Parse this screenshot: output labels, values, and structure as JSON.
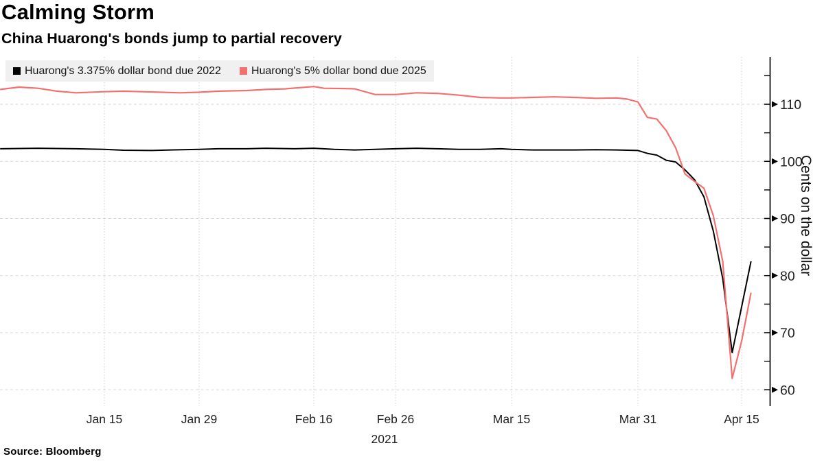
{
  "header": {
    "title": "Calming Storm",
    "subtitle": "China Huarong's bonds jump to partial recovery"
  },
  "legend": {
    "items": [
      {
        "label": "Huarong's 3.375% dollar bond due 2022",
        "color": "#000000"
      },
      {
        "label": "Huarong's 5% dollar bond due 2025",
        "color": "#f4706e"
      }
    ]
  },
  "source": "Source: Bloomberg",
  "chart_data": {
    "type": "line",
    "title": "Calming Storm",
    "subtitle": "China Huarong's bonds jump to partial recovery",
    "ylabel": "Cents on the dollar",
    "year_label": "2021",
    "ylim": [
      58,
      118.5
    ],
    "y_ticks": [
      110,
      100,
      90,
      80,
      70,
      60
    ],
    "y_minor_ticks": [
      115,
      105,
      95,
      85,
      75,
      65
    ],
    "x_ticks": [
      {
        "label": "Jan 15",
        "date": "2021-01-15"
      },
      {
        "label": "Jan 29",
        "date": "2021-01-29"
      },
      {
        "label": "Feb 16",
        "date": "2021-02-16"
      },
      {
        "label": "Feb 26",
        "date": "2021-02-26"
      },
      {
        "label": "Mar 15",
        "date": "2021-03-15"
      },
      {
        "label": "Mar 31",
        "date": "2021-03-31"
      },
      {
        "label": "Apr 15",
        "date": "2021-04-15"
      }
    ],
    "grid": "dashed",
    "legend_position": "top-left",
    "axis_side": "right",
    "series": [
      {
        "name": "Huarong's 3.375% dollar bond due 2022",
        "color": "#000000",
        "points": [
          [
            "2020-12-31",
            102.2
          ],
          [
            "2021-01-04",
            102.25
          ],
          [
            "2021-01-06",
            102.3
          ],
          [
            "2021-01-08",
            102.25
          ],
          [
            "2021-01-12",
            102.2
          ],
          [
            "2021-01-15",
            102.1
          ],
          [
            "2021-01-19",
            101.95
          ],
          [
            "2021-01-22",
            101.9
          ],
          [
            "2021-01-26",
            102.0
          ],
          [
            "2021-01-29",
            102.1
          ],
          [
            "2021-02-02",
            102.2
          ],
          [
            "2021-02-05",
            102.2
          ],
          [
            "2021-02-09",
            102.3
          ],
          [
            "2021-02-12",
            102.2
          ],
          [
            "2021-02-16",
            102.3
          ],
          [
            "2021-02-18",
            102.1
          ],
          [
            "2021-02-22",
            102.0
          ],
          [
            "2021-02-24",
            102.1
          ],
          [
            "2021-02-26",
            102.2
          ],
          [
            "2021-03-02",
            102.3
          ],
          [
            "2021-03-04",
            102.2
          ],
          [
            "2021-03-08",
            102.1
          ],
          [
            "2021-03-10",
            102.1
          ],
          [
            "2021-03-12",
            102.2
          ],
          [
            "2021-03-15",
            102.1
          ],
          [
            "2021-03-17",
            102.0
          ],
          [
            "2021-03-19",
            102.0
          ],
          [
            "2021-03-23",
            102.0
          ],
          [
            "2021-03-25",
            102.05
          ],
          [
            "2021-03-29",
            102.0
          ],
          [
            "2021-03-31",
            101.9
          ],
          [
            "2021-04-01",
            101.4
          ],
          [
            "2021-04-02",
            101.1
          ],
          [
            "2021-04-05",
            100.2
          ],
          [
            "2021-04-06",
            99.9
          ],
          [
            "2021-04-07",
            98.5
          ],
          [
            "2021-04-08",
            96.8
          ],
          [
            "2021-04-09",
            93.8
          ],
          [
            "2021-04-12",
            87.8
          ],
          [
            "2021-04-13",
            79.5
          ],
          [
            "2021-04-14",
            66.5
          ],
          [
            "2021-04-15",
            74.5
          ],
          [
            "2021-04-16",
            82.5
          ]
        ]
      },
      {
        "name": "Huarong's 5% dollar bond due 2025",
        "color": "#f4706e",
        "points": [
          [
            "2020-12-31",
            112.6
          ],
          [
            "2021-01-04",
            113.0
          ],
          [
            "2021-01-06",
            112.8
          ],
          [
            "2021-01-08",
            112.3
          ],
          [
            "2021-01-12",
            112.0
          ],
          [
            "2021-01-15",
            112.2
          ],
          [
            "2021-01-19",
            112.3
          ],
          [
            "2021-01-21",
            112.2
          ],
          [
            "2021-01-25",
            112.1
          ],
          [
            "2021-01-27",
            112.0
          ],
          [
            "2021-01-29",
            112.1
          ],
          [
            "2021-02-02",
            112.3
          ],
          [
            "2021-02-05",
            112.4
          ],
          [
            "2021-02-09",
            112.6
          ],
          [
            "2021-02-11",
            112.7
          ],
          [
            "2021-02-16",
            113.1
          ],
          [
            "2021-02-17",
            112.8
          ],
          [
            "2021-02-19",
            112.75
          ],
          [
            "2021-02-22",
            112.7
          ],
          [
            "2021-02-24",
            111.7
          ],
          [
            "2021-02-26",
            111.7
          ],
          [
            "2021-03-02",
            112.0
          ],
          [
            "2021-03-04",
            111.9
          ],
          [
            "2021-03-08",
            111.6
          ],
          [
            "2021-03-10",
            111.2
          ],
          [
            "2021-03-12",
            111.1
          ],
          [
            "2021-03-15",
            111.1
          ],
          [
            "2021-03-17",
            111.2
          ],
          [
            "2021-03-19",
            111.3
          ],
          [
            "2021-03-23",
            111.2
          ],
          [
            "2021-03-25",
            111.05
          ],
          [
            "2021-03-29",
            111.1
          ],
          [
            "2021-03-30",
            110.9
          ],
          [
            "2021-03-31",
            110.4
          ],
          [
            "2021-04-01",
            107.7
          ],
          [
            "2021-04-02",
            107.4
          ],
          [
            "2021-04-05",
            105.4
          ],
          [
            "2021-04-06",
            102.4
          ],
          [
            "2021-04-07",
            97.8
          ],
          [
            "2021-04-08",
            96.5
          ],
          [
            "2021-04-09",
            95.3
          ],
          [
            "2021-04-12",
            90.5
          ],
          [
            "2021-04-13",
            82.5
          ],
          [
            "2021-04-14",
            62.0
          ],
          [
            "2021-04-15",
            68.5
          ],
          [
            "2021-04-16",
            77.0
          ]
        ]
      }
    ]
  }
}
